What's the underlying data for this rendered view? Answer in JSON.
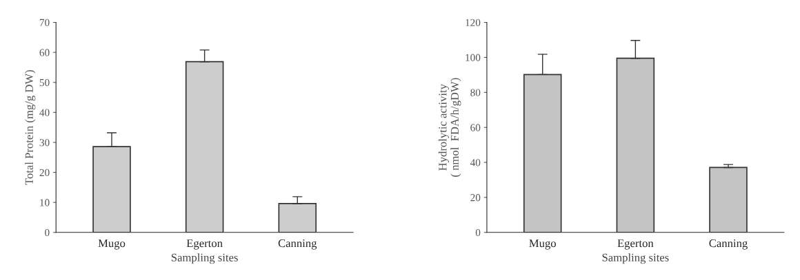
{
  "chart_data": [
    {
      "type": "bar",
      "categories": [
        "Mugo",
        "Egerton",
        "Canning"
      ],
      "values": [
        28.6,
        56.9,
        9.6
      ],
      "errors": [
        [
          28.6,
          33.2
        ],
        [
          56.9,
          60.8
        ],
        [
          9.6,
          11.9
        ]
      ],
      "color": "#cdcdcd",
      "xlabel": "Sampling sites",
      "ylabel": "Total Protein (mg/g DW)",
      "ylim": [
        0,
        70
      ],
      "yticks": [
        0,
        10,
        20,
        30,
        40,
        50,
        60,
        70
      ],
      "grid": false
    },
    {
      "type": "bar",
      "categories": [
        "Mugo",
        "Egerton",
        "Canning"
      ],
      "values": [
        90.2,
        99.5,
        37.1
      ],
      "errors": [
        [
          90.2,
          101.8
        ],
        [
          99.5,
          109.7
        ],
        [
          37.1,
          38.8
        ]
      ],
      "color": "#c4c4c4",
      "xlabel": "Sampling sites",
      "ylabel": "Hydrolytic activity\n( nmol  FDA/h/gDW)",
      "ylim": [
        0,
        120
      ],
      "yticks": [
        0,
        20,
        40,
        60,
        80,
        100,
        120
      ],
      "grid": false
    }
  ]
}
